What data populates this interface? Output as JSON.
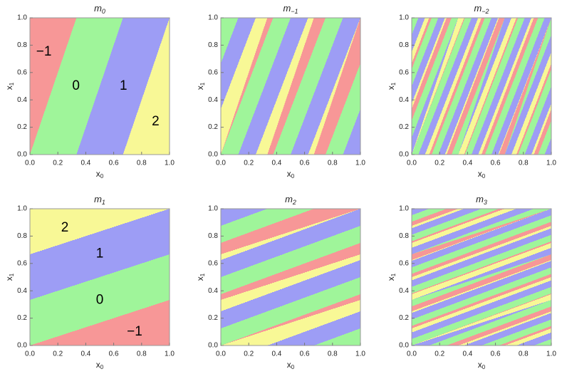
{
  "chart_data": [
    {
      "type": "region",
      "title": "m",
      "subscript": "0",
      "x_label": "x",
      "x_label_sub": "0",
      "y_label": "x",
      "y_label_sub": "1",
      "levels": [
        -1,
        0,
        1,
        2
      ],
      "colors": [
        "#f79797",
        "#9ff59a",
        "#9d9df5",
        "#f8f896"
      ],
      "xlim": [
        0,
        1
      ],
      "ylim": [
        0,
        1
      ],
      "xticks": [
        {
          "value": 0,
          "label": "0.0"
        },
        {
          "value": 0.2,
          "label": "0.2"
        },
        {
          "value": 0.4,
          "label": "0.4"
        },
        {
          "value": 0.6,
          "label": "0.6"
        },
        {
          "value": 0.8,
          "label": "0.8"
        },
        {
          "value": 1,
          "label": "1.0"
        }
      ],
      "yticks": [
        {
          "value": 0,
          "label": "0.0"
        },
        {
          "value": 0.2,
          "label": "0.2"
        },
        {
          "value": 0.4,
          "label": "0.4"
        },
        {
          "value": 0.6,
          "label": "0.6"
        },
        {
          "value": 0.8,
          "label": "0.8"
        },
        {
          "value": 1,
          "label": "1.0"
        }
      ],
      "annotations": [
        {
          "text": "−1",
          "x": 0.1,
          "y": 0.75
        },
        {
          "text": "0",
          "x": 0.33,
          "y": 0.5
        },
        {
          "text": "1",
          "x": 0.67,
          "y": 0.5
        },
        {
          "text": "2",
          "x": 0.9,
          "y": 0.24
        }
      ]
    },
    {
      "type": "region",
      "title": "m",
      "subscript": "−1",
      "x_label": "x",
      "x_label_sub": "0",
      "y_label": "x",
      "y_label_sub": "1",
      "levels": [
        -1,
        0,
        1,
        2
      ],
      "colors": [
        "#f79797",
        "#9ff59a",
        "#9d9df5",
        "#f8f896"
      ],
      "xlim": [
        0,
        1
      ],
      "ylim": [
        0,
        1
      ],
      "xticks": [
        {
          "value": 0,
          "label": "0.0"
        },
        {
          "value": 0.2,
          "label": "0.2"
        },
        {
          "value": 0.4,
          "label": "0.4"
        },
        {
          "value": 0.6,
          "label": "0.6"
        },
        {
          "value": 0.8,
          "label": "0.8"
        },
        {
          "value": 1,
          "label": "1.0"
        }
      ],
      "yticks": [
        {
          "value": 0,
          "label": "0.0"
        },
        {
          "value": 0.2,
          "label": "0.2"
        },
        {
          "value": 0.4,
          "label": "0.4"
        },
        {
          "value": 0.6,
          "label": "0.6"
        },
        {
          "value": 0.8,
          "label": "0.8"
        },
        {
          "value": 1,
          "label": "1.0"
        }
      ]
    },
    {
      "type": "region",
      "title": "m",
      "subscript": "−2",
      "x_label": "x",
      "x_label_sub": "0",
      "y_label": "x",
      "y_label_sub": "1",
      "levels": [
        -1,
        0,
        1,
        2
      ],
      "colors": [
        "#f79797",
        "#9ff59a",
        "#9d9df5",
        "#f8f896"
      ],
      "xlim": [
        0,
        1
      ],
      "ylim": [
        0,
        1
      ],
      "xticks": [
        {
          "value": 0,
          "label": "0.0"
        },
        {
          "value": 0.2,
          "label": "0.2"
        },
        {
          "value": 0.4,
          "label": "0.4"
        },
        {
          "value": 0.6,
          "label": "0.6"
        },
        {
          "value": 0.8,
          "label": "0.8"
        },
        {
          "value": 1,
          "label": "1.0"
        }
      ],
      "yticks": [
        {
          "value": 0,
          "label": "0.0"
        },
        {
          "value": 0.2,
          "label": "0.2"
        },
        {
          "value": 0.4,
          "label": "0.4"
        },
        {
          "value": 0.6,
          "label": "0.6"
        },
        {
          "value": 0.8,
          "label": "0.8"
        },
        {
          "value": 1,
          "label": "1.0"
        }
      ]
    },
    {
      "type": "region",
      "title": "m",
      "subscript": "1",
      "x_label": "x",
      "x_label_sub": "0",
      "y_label": "x",
      "y_label_sub": "1",
      "levels": [
        -1,
        0,
        1,
        2
      ],
      "colors": [
        "#f79797",
        "#9ff59a",
        "#9d9df5",
        "#f8f896"
      ],
      "xlim": [
        0,
        1
      ],
      "ylim": [
        0,
        1
      ],
      "xticks": [
        {
          "value": 0,
          "label": "0.0"
        },
        {
          "value": 0.2,
          "label": "0.2"
        },
        {
          "value": 0.4,
          "label": "0.4"
        },
        {
          "value": 0.6,
          "label": "0.6"
        },
        {
          "value": 0.8,
          "label": "0.8"
        },
        {
          "value": 1,
          "label": "1.0"
        }
      ],
      "yticks": [
        {
          "value": 0,
          "label": "0.0"
        },
        {
          "value": 0.2,
          "label": "0.2"
        },
        {
          "value": 0.4,
          "label": "0.4"
        },
        {
          "value": 0.6,
          "label": "0.6"
        },
        {
          "value": 0.8,
          "label": "0.8"
        },
        {
          "value": 1,
          "label": "1.0"
        }
      ],
      "annotations": [
        {
          "text": "2",
          "x": 0.25,
          "y": 0.86
        },
        {
          "text": "1",
          "x": 0.5,
          "y": 0.67
        },
        {
          "text": "0",
          "x": 0.5,
          "y": 0.33
        },
        {
          "text": "−1",
          "x": 0.75,
          "y": 0.1
        }
      ]
    },
    {
      "type": "region",
      "title": "m",
      "subscript": "2",
      "x_label": "x",
      "x_label_sub": "0",
      "y_label": "x",
      "y_label_sub": "1",
      "levels": [
        -1,
        0,
        1,
        2
      ],
      "colors": [
        "#f79797",
        "#9ff59a",
        "#9d9df5",
        "#f8f896"
      ],
      "xlim": [
        0,
        1
      ],
      "ylim": [
        0,
        1
      ],
      "xticks": [
        {
          "value": 0,
          "label": "0.0"
        },
        {
          "value": 0.2,
          "label": "0.2"
        },
        {
          "value": 0.4,
          "label": "0.4"
        },
        {
          "value": 0.6,
          "label": "0.6"
        },
        {
          "value": 0.8,
          "label": "0.8"
        },
        {
          "value": 1,
          "label": "1.0"
        }
      ],
      "yticks": [
        {
          "value": 0,
          "label": "0.0"
        },
        {
          "value": 0.2,
          "label": "0.2"
        },
        {
          "value": 0.4,
          "label": "0.4"
        },
        {
          "value": 0.6,
          "label": "0.6"
        },
        {
          "value": 0.8,
          "label": "0.8"
        },
        {
          "value": 1,
          "label": "1.0"
        }
      ]
    },
    {
      "type": "region",
      "title": "m",
      "subscript": "3",
      "x_label": "x",
      "x_label_sub": "0",
      "y_label": "x",
      "y_label_sub": "1",
      "levels": [
        -1,
        0,
        1,
        2
      ],
      "colors": [
        "#f79797",
        "#9ff59a",
        "#9d9df5",
        "#f8f896"
      ],
      "xlim": [
        0,
        1
      ],
      "ylim": [
        0,
        1
      ],
      "xticks": [
        {
          "value": 0,
          "label": "0.0"
        },
        {
          "value": 0.2,
          "label": "0.2"
        },
        {
          "value": 0.4,
          "label": "0.4"
        },
        {
          "value": 0.6,
          "label": "0.6"
        },
        {
          "value": 0.8,
          "label": "0.8"
        },
        {
          "value": 1,
          "label": "1.0"
        }
      ],
      "yticks": [
        {
          "value": 0,
          "label": "0.0"
        },
        {
          "value": 0.2,
          "label": "0.2"
        },
        {
          "value": 0.4,
          "label": "0.4"
        },
        {
          "value": 0.6,
          "label": "0.6"
        },
        {
          "value": 0.8,
          "label": "0.8"
        },
        {
          "value": 1,
          "label": "1.0"
        }
      ]
    }
  ]
}
